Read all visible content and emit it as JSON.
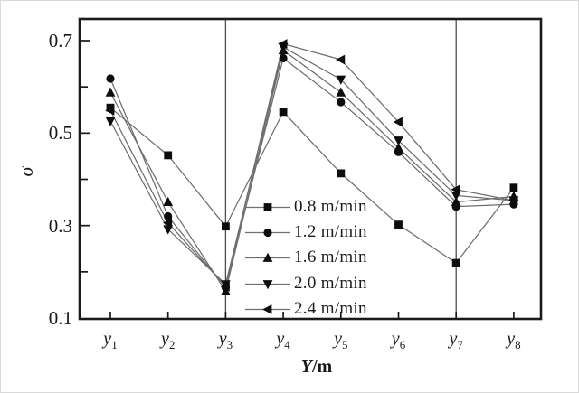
{
  "figure": {
    "background": "#ffffff",
    "axis_color": "#1a1a1a",
    "series_line_color": "#6e6e6e",
    "marker_color": "#0d0d0d",
    "reference_line_color": "#4d4d4d",
    "text_color": "#1a1a1a"
  },
  "chart_data": {
    "type": "line",
    "title": "",
    "xlabel": {
      "italic": "Y",
      "rest": "/m"
    },
    "ylabel": "σ",
    "x_categories": [
      "y1",
      "y2",
      "y3",
      "y4",
      "y5",
      "y6",
      "y7",
      "y8"
    ],
    "x_tick_labels": [
      {
        "base": "y",
        "sub": "1"
      },
      {
        "base": "y",
        "sub": "2"
      },
      {
        "base": "y",
        "sub": "3"
      },
      {
        "base": "y",
        "sub": "4"
      },
      {
        "base": "y",
        "sub": "5"
      },
      {
        "base": "y",
        "sub": "6"
      },
      {
        "base": "y",
        "sub": "7"
      },
      {
        "base": "y",
        "sub": "8"
      }
    ],
    "y_ticks_labeled": [
      {
        "value": 0.7,
        "label": "0.7"
      },
      {
        "value": 0.5,
        "label": "0.5"
      },
      {
        "value": 0.3,
        "label": "0.3"
      },
      {
        "value": 0.1,
        "label": "0.1"
      }
    ],
    "y_minor_ticks": [
      0.6,
      0.4,
      0.2
    ],
    "ylim": [
      0.1,
      0.745
    ],
    "grid": "off",
    "reference_line_categories": [
      "y3",
      "y7"
    ],
    "legend_position": "inside-lower-middle",
    "series": [
      {
        "name": "0.8 m/min",
        "marker": "square",
        "values": [
          0.555,
          0.452,
          0.298,
          0.546,
          0.413,
          0.302,
          0.219,
          0.382
        ]
      },
      {
        "name": "1.2 m/min",
        "marker": "circle",
        "values": [
          0.618,
          0.32,
          0.166,
          0.662,
          0.567,
          0.459,
          0.341,
          0.346
        ]
      },
      {
        "name": "1.6 m/min",
        "marker": "triangle-up",
        "values": [
          0.588,
          0.351,
          0.158,
          0.679,
          0.588,
          0.468,
          0.351,
          0.363
        ]
      },
      {
        "name": "2.0 m/min",
        "marker": "triangle-down",
        "values": [
          0.526,
          0.292,
          0.173,
          0.686,
          0.616,
          0.484,
          0.365,
          0.354
        ]
      },
      {
        "name": "2.4 m/min",
        "marker": "triangle-left",
        "values": [
          0.549,
          0.306,
          0.168,
          0.693,
          0.659,
          0.524,
          0.378,
          0.354
        ]
      }
    ]
  }
}
